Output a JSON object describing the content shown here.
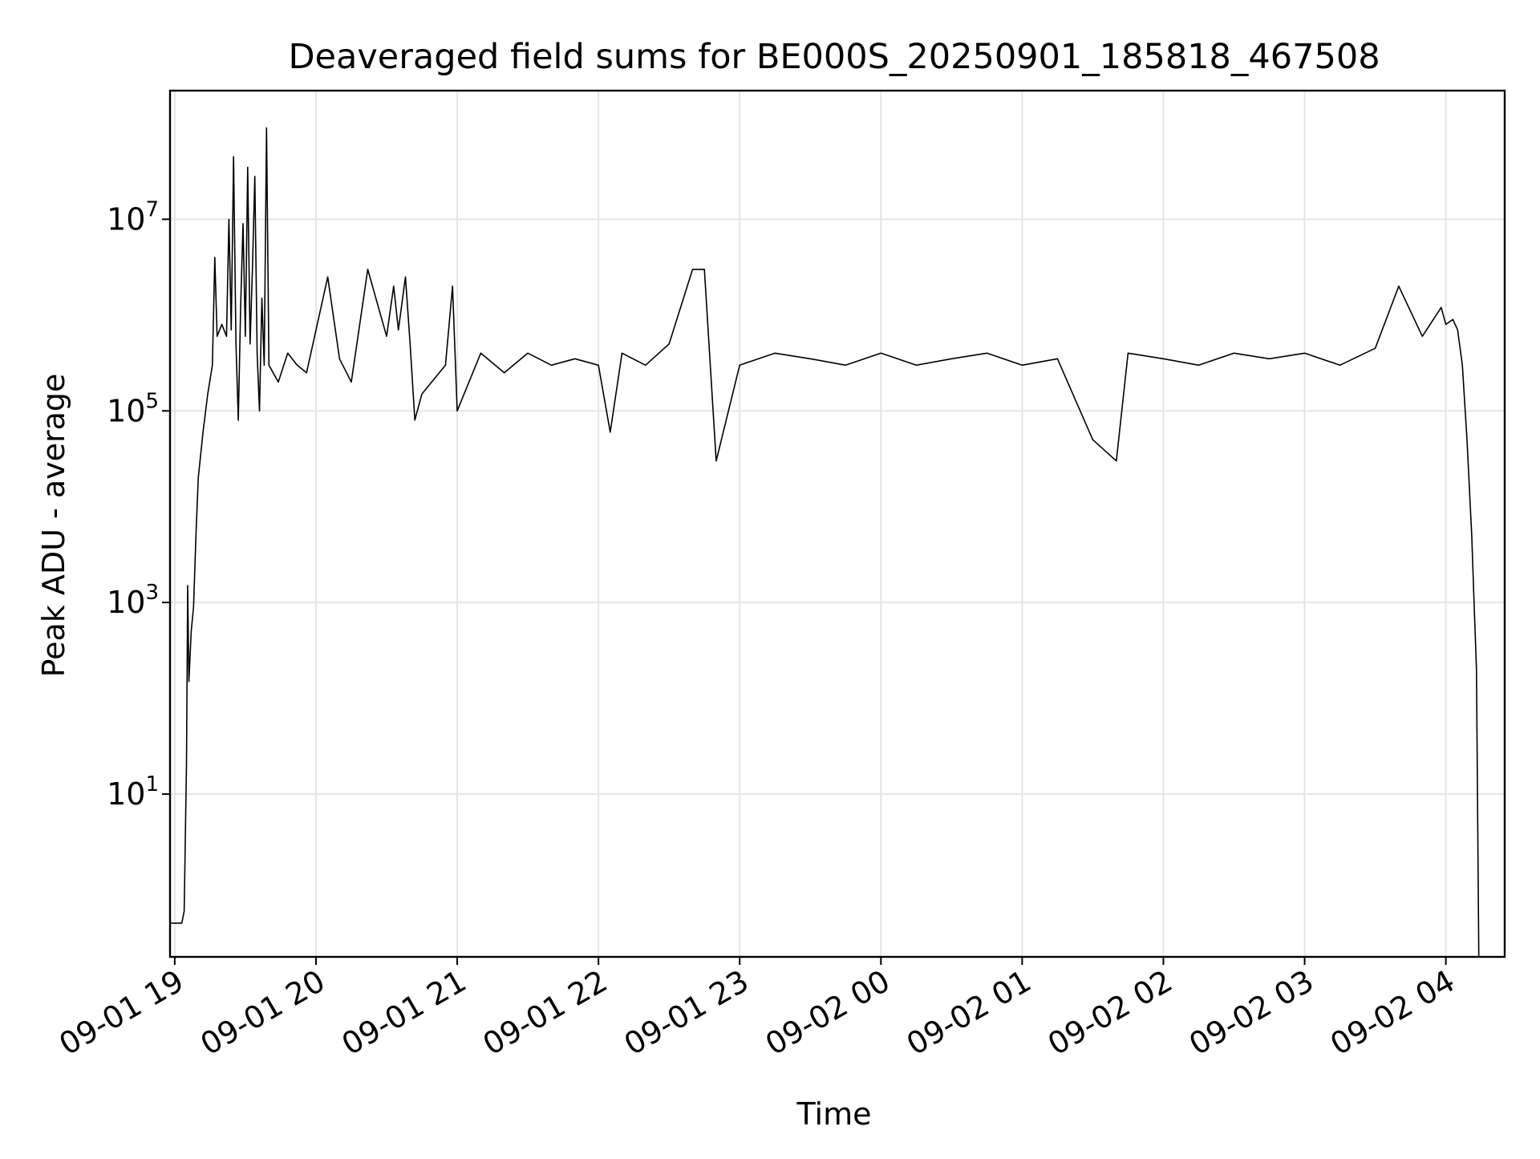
{
  "chart_data": {
    "type": "line",
    "title": "Deaveraged field sums for BE000S_20250901_185818_467508",
    "xlabel": "Time",
    "ylabel": "Peak ADU - average",
    "yscale": "log",
    "grid": true,
    "colors": {
      "line": "#000000",
      "grid": "#e5e5e5",
      "frame": "#000000",
      "background": "#ffffff"
    },
    "xlim": [
      "2025-09-01 18:58",
      "2025-09-02 04:25"
    ],
    "ylim": [
      0.2,
      220000000
    ],
    "x_ticks": [
      {
        "value": "2025-09-01 19:00",
        "label": "09-01 19"
      },
      {
        "value": "2025-09-01 20:00",
        "label": "09-01 20"
      },
      {
        "value": "2025-09-01 21:00",
        "label": "09-01 21"
      },
      {
        "value": "2025-09-01 22:00",
        "label": "09-01 22"
      },
      {
        "value": "2025-09-01 23:00",
        "label": "09-01 23"
      },
      {
        "value": "2025-09-02 00:00",
        "label": "09-02 00"
      },
      {
        "value": "2025-09-02 01:00",
        "label": "09-02 01"
      },
      {
        "value": "2025-09-02 02:00",
        "label": "09-02 02"
      },
      {
        "value": "2025-09-02 03:00",
        "label": "09-02 03"
      },
      {
        "value": "2025-09-02 04:00",
        "label": "09-02 04"
      }
    ],
    "y_ticks": [
      {
        "value": 10,
        "base": "10",
        "exp": "1"
      },
      {
        "value": 1000,
        "base": "10",
        "exp": "3"
      },
      {
        "value": 100000,
        "base": "10",
        "exp": "5"
      },
      {
        "value": 10000000,
        "base": "10",
        "exp": "7"
      }
    ],
    "series": [
      {
        "points": [
          [
            "2025-09-01 18:58:18",
            0.45
          ],
          [
            "2025-09-01 19:01:00",
            0.45
          ],
          [
            "2025-09-01 19:03:00",
            0.45
          ],
          [
            "2025-09-01 19:04:00",
            0.6
          ],
          [
            "2025-09-01 19:05:00",
            20
          ],
          [
            "2025-09-01 19:05:30",
            1500
          ],
          [
            "2025-09-01 19:06:00",
            150
          ],
          [
            "2025-09-01 19:07:00",
            500
          ],
          [
            "2025-09-01 19:08:00",
            900
          ],
          [
            "2025-09-01 19:09:00",
            5000
          ],
          [
            "2025-09-01 19:10:00",
            20000
          ],
          [
            "2025-09-01 19:12:00",
            60000
          ],
          [
            "2025-09-01 19:14:00",
            150000
          ],
          [
            "2025-09-01 19:16:00",
            300000
          ],
          [
            "2025-09-01 19:17:00",
            4000000
          ],
          [
            "2025-09-01 19:18:00",
            600000
          ],
          [
            "2025-09-01 19:20:00",
            800000
          ],
          [
            "2025-09-01 19:22:00",
            600000
          ],
          [
            "2025-09-01 19:23:00",
            10000000
          ],
          [
            "2025-09-01 19:24:00",
            700000
          ],
          [
            "2025-09-01 19:25:00",
            45000000
          ],
          [
            "2025-09-01 19:26:00",
            500000
          ],
          [
            "2025-09-01 19:27:00",
            80000
          ],
          [
            "2025-09-01 19:28:00",
            1200000
          ],
          [
            "2025-09-01 19:29:00",
            9000000
          ],
          [
            "2025-09-01 19:30:00",
            600000
          ],
          [
            "2025-09-01 19:31:00",
            35000000
          ],
          [
            "2025-09-01 19:32:00",
            500000
          ],
          [
            "2025-09-01 19:33:00",
            3000000
          ],
          [
            "2025-09-01 19:34:00",
            28000000
          ],
          [
            "2025-09-01 19:35:00",
            400000
          ],
          [
            "2025-09-01 19:36:00",
            100000
          ],
          [
            "2025-09-01 19:37:00",
            1500000
          ],
          [
            "2025-09-01 19:38:00",
            300000
          ],
          [
            "2025-09-01 19:39:00",
            90000000
          ],
          [
            "2025-09-01 19:40:00",
            300000
          ],
          [
            "2025-09-01 19:44:00",
            200000
          ],
          [
            "2025-09-01 19:48:00",
            400000
          ],
          [
            "2025-09-01 19:52:00",
            300000
          ],
          [
            "2025-09-01 19:56:00",
            250000
          ],
          [
            "2025-09-01 20:05:00",
            2500000
          ],
          [
            "2025-09-01 20:10:00",
            350000
          ],
          [
            "2025-09-01 20:15:00",
            200000
          ],
          [
            "2025-09-01 20:22:00",
            3000000
          ],
          [
            "2025-09-01 20:30:00",
            600000
          ],
          [
            "2025-09-01 20:33:00",
            2000000
          ],
          [
            "2025-09-01 20:35:00",
            700000
          ],
          [
            "2025-09-01 20:38:00",
            2500000
          ],
          [
            "2025-09-01 20:40:00",
            500000
          ],
          [
            "2025-09-01 20:42:00",
            80000
          ],
          [
            "2025-09-01 20:45:00",
            150000
          ],
          [
            "2025-09-01 20:55:00",
            300000
          ],
          [
            "2025-09-01 20:58:00",
            2000000
          ],
          [
            "2025-09-01 21:00:00",
            100000
          ],
          [
            "2025-09-01 21:10:00",
            400000
          ],
          [
            "2025-09-01 21:20:00",
            250000
          ],
          [
            "2025-09-01 21:30:00",
            400000
          ],
          [
            "2025-09-01 21:40:00",
            300000
          ],
          [
            "2025-09-01 21:50:00",
            350000
          ],
          [
            "2025-09-01 22:00:00",
            300000
          ],
          [
            "2025-09-01 22:05:00",
            60000
          ],
          [
            "2025-09-01 22:10:00",
            400000
          ],
          [
            "2025-09-01 22:20:00",
            300000
          ],
          [
            "2025-09-01 22:30:00",
            500000
          ],
          [
            "2025-09-01 22:40:00",
            3000000
          ],
          [
            "2025-09-01 22:45:00",
            3000000
          ],
          [
            "2025-09-01 22:50:00",
            30000
          ],
          [
            "2025-09-01 23:00:00",
            300000
          ],
          [
            "2025-09-01 23:15:00",
            400000
          ],
          [
            "2025-09-01 23:30:00",
            350000
          ],
          [
            "2025-09-01 23:45:00",
            300000
          ],
          [
            "2025-09-02 00:00:00",
            400000
          ],
          [
            "2025-09-02 00:15:00",
            300000
          ],
          [
            "2025-09-02 00:30:00",
            350000
          ],
          [
            "2025-09-02 00:45:00",
            400000
          ],
          [
            "2025-09-02 01:00:00",
            300000
          ],
          [
            "2025-09-02 01:15:00",
            350000
          ],
          [
            "2025-09-02 01:30:00",
            50000
          ],
          [
            "2025-09-02 01:40:00",
            30000
          ],
          [
            "2025-09-02 01:45:00",
            400000
          ],
          [
            "2025-09-02 02:00:00",
            350000
          ],
          [
            "2025-09-02 02:15:00",
            300000
          ],
          [
            "2025-09-02 02:30:00",
            400000
          ],
          [
            "2025-09-02 02:45:00",
            350000
          ],
          [
            "2025-09-02 03:00:00",
            400000
          ],
          [
            "2025-09-02 03:15:00",
            300000
          ],
          [
            "2025-09-02 03:30:00",
            450000
          ],
          [
            "2025-09-02 03:40:00",
            2000000
          ],
          [
            "2025-09-02 03:50:00",
            600000
          ],
          [
            "2025-09-02 03:58:00",
            1200000
          ],
          [
            "2025-09-02 04:00:00",
            800000
          ],
          [
            "2025-09-02 04:03:00",
            900000
          ],
          [
            "2025-09-02 04:05:00",
            700000
          ],
          [
            "2025-09-02 04:07:00",
            300000
          ],
          [
            "2025-09-02 04:09:00",
            50000
          ],
          [
            "2025-09-02 04:11:00",
            5000
          ],
          [
            "2025-09-02 04:12:00",
            1000
          ],
          [
            "2025-09-02 04:13:00",
            200
          ],
          [
            "2025-09-02 04:14:00",
            0.2
          ]
        ]
      }
    ]
  }
}
